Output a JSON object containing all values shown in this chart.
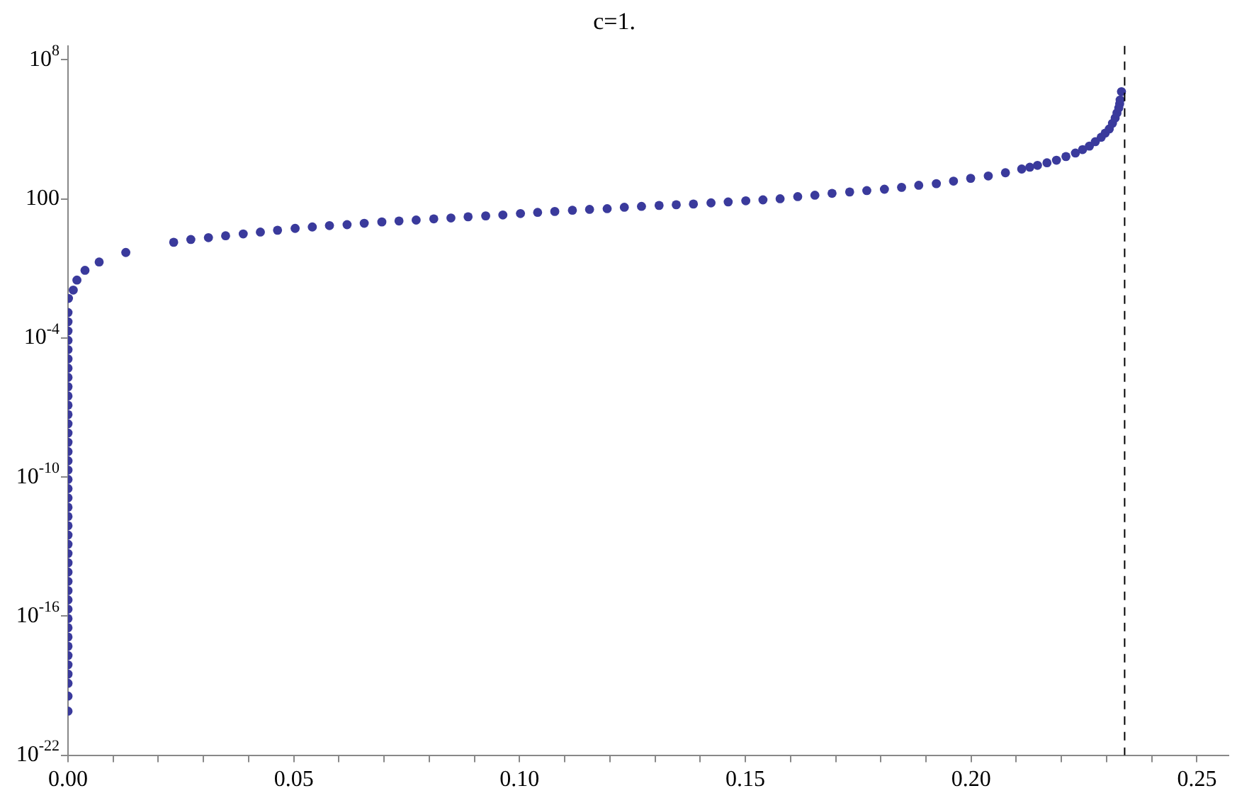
{
  "chart_data": {
    "type": "scatter",
    "title": "c=1.",
    "marker": "circle",
    "legend": false,
    "grid": false,
    "log": "y",
    "xlim": [
      0,
      0.257
    ],
    "ylim": [
      1e-22,
      400000000.0
    ],
    "xticks": [
      {
        "value": 0,
        "label": "0.00"
      },
      {
        "value": 0.01,
        "label": null
      },
      {
        "value": 0.02,
        "label": null
      },
      {
        "value": 0.03,
        "label": null
      },
      {
        "value": 0.04,
        "label": null
      },
      {
        "value": 0.05,
        "label": "0.05"
      },
      {
        "value": 0.06,
        "label": null
      },
      {
        "value": 0.07,
        "label": null
      },
      {
        "value": 0.08,
        "label": null
      },
      {
        "value": 0.09,
        "label": null
      },
      {
        "value": 0.1,
        "label": "0.10"
      },
      {
        "value": 0.11,
        "label": null
      },
      {
        "value": 0.12,
        "label": null
      },
      {
        "value": 0.13,
        "label": null
      },
      {
        "value": 0.14,
        "label": null
      },
      {
        "value": 0.15,
        "label": "0.15"
      },
      {
        "value": 0.16,
        "label": null
      },
      {
        "value": 0.17,
        "label": null
      },
      {
        "value": 0.18,
        "label": null
      },
      {
        "value": 0.19,
        "label": null
      },
      {
        "value": 0.2,
        "label": "0.20"
      },
      {
        "value": 0.21,
        "label": null
      },
      {
        "value": 0.22,
        "label": null
      },
      {
        "value": 0.23,
        "label": null
      },
      {
        "value": 0.24,
        "label": null
      },
      {
        "value": 0.25,
        "label": "0.25"
      }
    ],
    "yticks": [
      {
        "value": 1e-22,
        "label": "10$^{-22}$"
      },
      {
        "value": 1e-16,
        "label": "10$^{-16}$"
      },
      {
        "value": 1e-10,
        "label": "10$^{-10}$"
      },
      {
        "value": 0.0001,
        "label": "10$^{-4}$"
      },
      100,
      {
        "value": 100000000.0,
        "label": "10$^{8}$"
      }
    ],
    "ref_lines": [
      {
        "axis": "x",
        "value": 0.234,
        "color": "#000000",
        "line_style": "dashed"
      }
    ],
    "series": [
      {
        "color": "#3a3a9c",
        "x": [
          0,
          0,
          0,
          0,
          0,
          0,
          0,
          0,
          0,
          0,
          0,
          0,
          0,
          0,
          0,
          0,
          0,
          0,
          0,
          0,
          0,
          0,
          0,
          0,
          0,
          0,
          0,
          0,
          0,
          0,
          0,
          0,
          0,
          0,
          0,
          0,
          0,
          0,
          0,
          0,
          0,
          0,
          0,
          0.0001,
          0.00116,
          0.00197,
          0.00376,
          0.0069,
          0.0128,
          0.0234,
          0.0272,
          0.0311,
          0.0349,
          0.0388,
          0.0426,
          0.0464,
          0.0503,
          0.0541,
          0.0579,
          0.0618,
          0.0656,
          0.0695,
          0.0733,
          0.0771,
          0.081,
          0.0848,
          0.0886,
          0.0925,
          0.0963,
          0.1002,
          0.104,
          0.1078,
          0.1117,
          0.1155,
          0.1194,
          0.1232,
          0.127,
          0.1309,
          0.1347,
          0.1385,
          0.1424,
          0.1462,
          0.1501,
          0.1539,
          0.1577,
          0.1616,
          0.1654,
          0.1692,
          0.1731,
          0.1769,
          0.1808,
          0.1846,
          0.1884,
          0.1923,
          0.1961,
          0.1999,
          0.2038,
          0.2076,
          0.2112,
          0.213,
          0.2147,
          0.2168,
          0.2189,
          0.221,
          0.2231,
          0.2247,
          0.2262,
          0.2275,
          0.2288,
          0.2297,
          0.2306,
          0.2313,
          0.2319,
          0.2323,
          0.2327,
          0.2329,
          0.233,
          0.2333
        ],
        "values": [
          7.94e-21,
          3.55e-20,
          1.26e-19,
          3.16e-19,
          7.94e-19,
          2e-18,
          5.01e-18,
          1.26e-17,
          3.16e-17,
          7.94e-17,
          2e-16,
          5.01e-16,
          1.26e-15,
          3.16e-15,
          7.94e-15,
          2e-14,
          5.01e-14,
          1.26e-13,
          3.16e-13,
          7.94e-13,
          2e-12,
          5.01e-12,
          1.26e-11,
          3.16e-11,
          7.94e-11,
          2e-10,
          5.01e-10,
          1.26e-09,
          3.16e-09,
          7.94e-09,
          2e-08,
          5.01e-08,
          1.26e-07,
          3.16e-07,
          7.94e-07,
          2e-06,
          5.01e-06,
          1.26e-05,
          3.16e-05,
          7.94e-05,
          0.0002,
          0.000501,
          0.00126,
          0.0051,
          0.0117,
          0.0316,
          0.083,
          0.19,
          0.49,
          1.35,
          1.78,
          2.14,
          2.57,
          3.09,
          3.72,
          4.47,
          5.37,
          6.17,
          7.08,
          7.76,
          8.91,
          10.2,
          11.2,
          12.3,
          13.8,
          15.1,
          17.0,
          18.6,
          20.4,
          23.4,
          26.3,
          28.8,
          32.4,
          35.5,
          38.0,
          43.7,
          47.9,
          52.5,
          56.2,
          60.3,
          67.6,
          74.1,
          83.2,
          91.2,
          102,
          126,
          145,
          174,
          200,
          229,
          263,
          316,
          389,
          457,
          589,
          776,
          977,
          1350,
          1950,
          2340,
          2820,
          3630,
          4680,
          6760,
          9550,
          13500,
          19100,
          29500,
          45700,
          69200,
          105000,
          182000,
          309000,
          513000,
          851000,
          1260000,
          1860000,
          4270000
        ]
      }
    ]
  }
}
